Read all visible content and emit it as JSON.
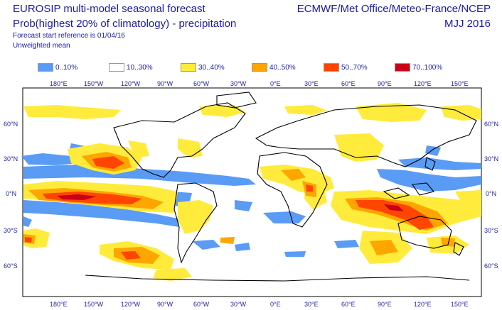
{
  "header": {
    "line1": "EUROSIP multi-model seasonal forecast",
    "line2": "Prob(highest 20% of climatology) - precipitation",
    "line3": "Forecast start reference is 01/04/16",
    "line4": "Unweighted mean",
    "source": "ECMWF/Met Office/Meteo-France/NCEP",
    "season": "MJJ 2016"
  },
  "legend": [
    {
      "label": "0..10%",
      "color": "#5a9bf5"
    },
    {
      "label": "10..30%",
      "color": "#ffffff"
    },
    {
      "label": "30..40%",
      "color": "#ffeb3b"
    },
    {
      "label": "40..50%",
      "color": "#ffa500"
    },
    {
      "label": "50..70%",
      "color": "#ff4500"
    },
    {
      "label": "70..100%",
      "color": "#c8001a"
    }
  ],
  "axes": {
    "lon_labels": [
      "180°E",
      "150°W",
      "120°W",
      "90°W",
      "60°W",
      "30°W",
      "0°E",
      "30°E",
      "60°E",
      "90°E",
      "120°E",
      "150°E"
    ],
    "lat_labels": [
      "60°N",
      "30°N",
      "0°N",
      "30°S",
      "60°S"
    ]
  }
}
